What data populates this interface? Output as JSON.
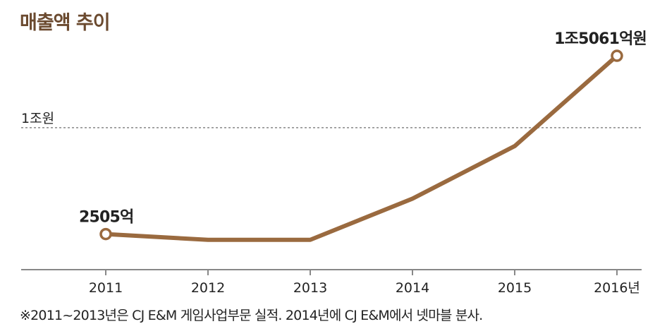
{
  "title": "매출액 추이",
  "footnote": "※2011~2013년은 CJ E&M 게임사업부문 실적. 2014년에 CJ E&M에서 넷마블 분사.",
  "colors": {
    "line": "#9a6a3f",
    "title": "#6b4a2f",
    "axis": "#888888",
    "reference": "#888888"
  },
  "chart_data": {
    "type": "line",
    "categories": [
      "2011",
      "2012",
      "2013",
      "2014",
      "2015",
      "2016년"
    ],
    "series": [
      {
        "values": [
          2505,
          2100,
          2100,
          5000,
          8700,
          15061
        ]
      }
    ],
    "reference_line": {
      "value": 10000,
      "label": "1조원"
    },
    "data_labels": [
      {
        "index": 0,
        "text": "2505억"
      },
      {
        "index": 5,
        "text": "1조5061억원"
      }
    ],
    "ylim": [
      0,
      17000
    ],
    "grid": false
  }
}
